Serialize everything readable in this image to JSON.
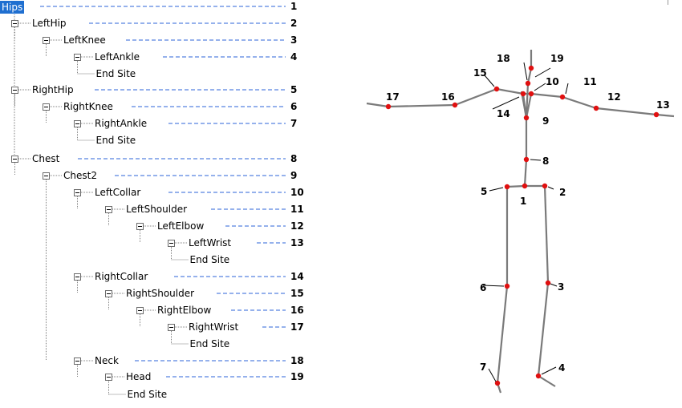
{
  "tree": {
    "nodes": [
      {
        "label": "Hips",
        "index": "1"
      },
      {
        "label": "LeftHip",
        "index": "2"
      },
      {
        "label": "LeftKnee",
        "index": "3"
      },
      {
        "label": "LeftAnkle",
        "index": "4"
      },
      {
        "label": "End Site",
        "index": ""
      },
      {
        "label": "RightHip",
        "index": "5"
      },
      {
        "label": "RightKnee",
        "index": "6"
      },
      {
        "label": "RightAnkle",
        "index": "7"
      },
      {
        "label": "End Site",
        "index": ""
      },
      {
        "label": "Chest",
        "index": "8"
      },
      {
        "label": "Chest2",
        "index": "9"
      },
      {
        "label": "LeftCollar",
        "index": "10"
      },
      {
        "label": "LeftShoulder",
        "index": "11"
      },
      {
        "label": "LeftElbow",
        "index": "12"
      },
      {
        "label": "LeftWrist",
        "index": "13"
      },
      {
        "label": "End Site",
        "index": ""
      },
      {
        "label": "RightCollar",
        "index": "14"
      },
      {
        "label": "RightShoulder",
        "index": "15"
      },
      {
        "label": "RightElbow",
        "index": "16"
      },
      {
        "label": "RightWrist",
        "index": "17"
      },
      {
        "label": "End Site",
        "index": ""
      },
      {
        "label": "Neck",
        "index": "18"
      },
      {
        "label": "Head",
        "index": "19"
      },
      {
        "label": "End Site",
        "index": ""
      }
    ]
  },
  "skeleton": {
    "joint_labels": [
      "1",
      "2",
      "3",
      "4",
      "5",
      "6",
      "7",
      "8",
      "9",
      "10",
      "11",
      "12",
      "13",
      "14",
      "15",
      "16",
      "17",
      "18",
      "19"
    ]
  },
  "colors": {
    "selection": "#1f6fd0",
    "dash": "#2b63d9",
    "bone": "#7a7a7a",
    "joint": "#e01010"
  }
}
